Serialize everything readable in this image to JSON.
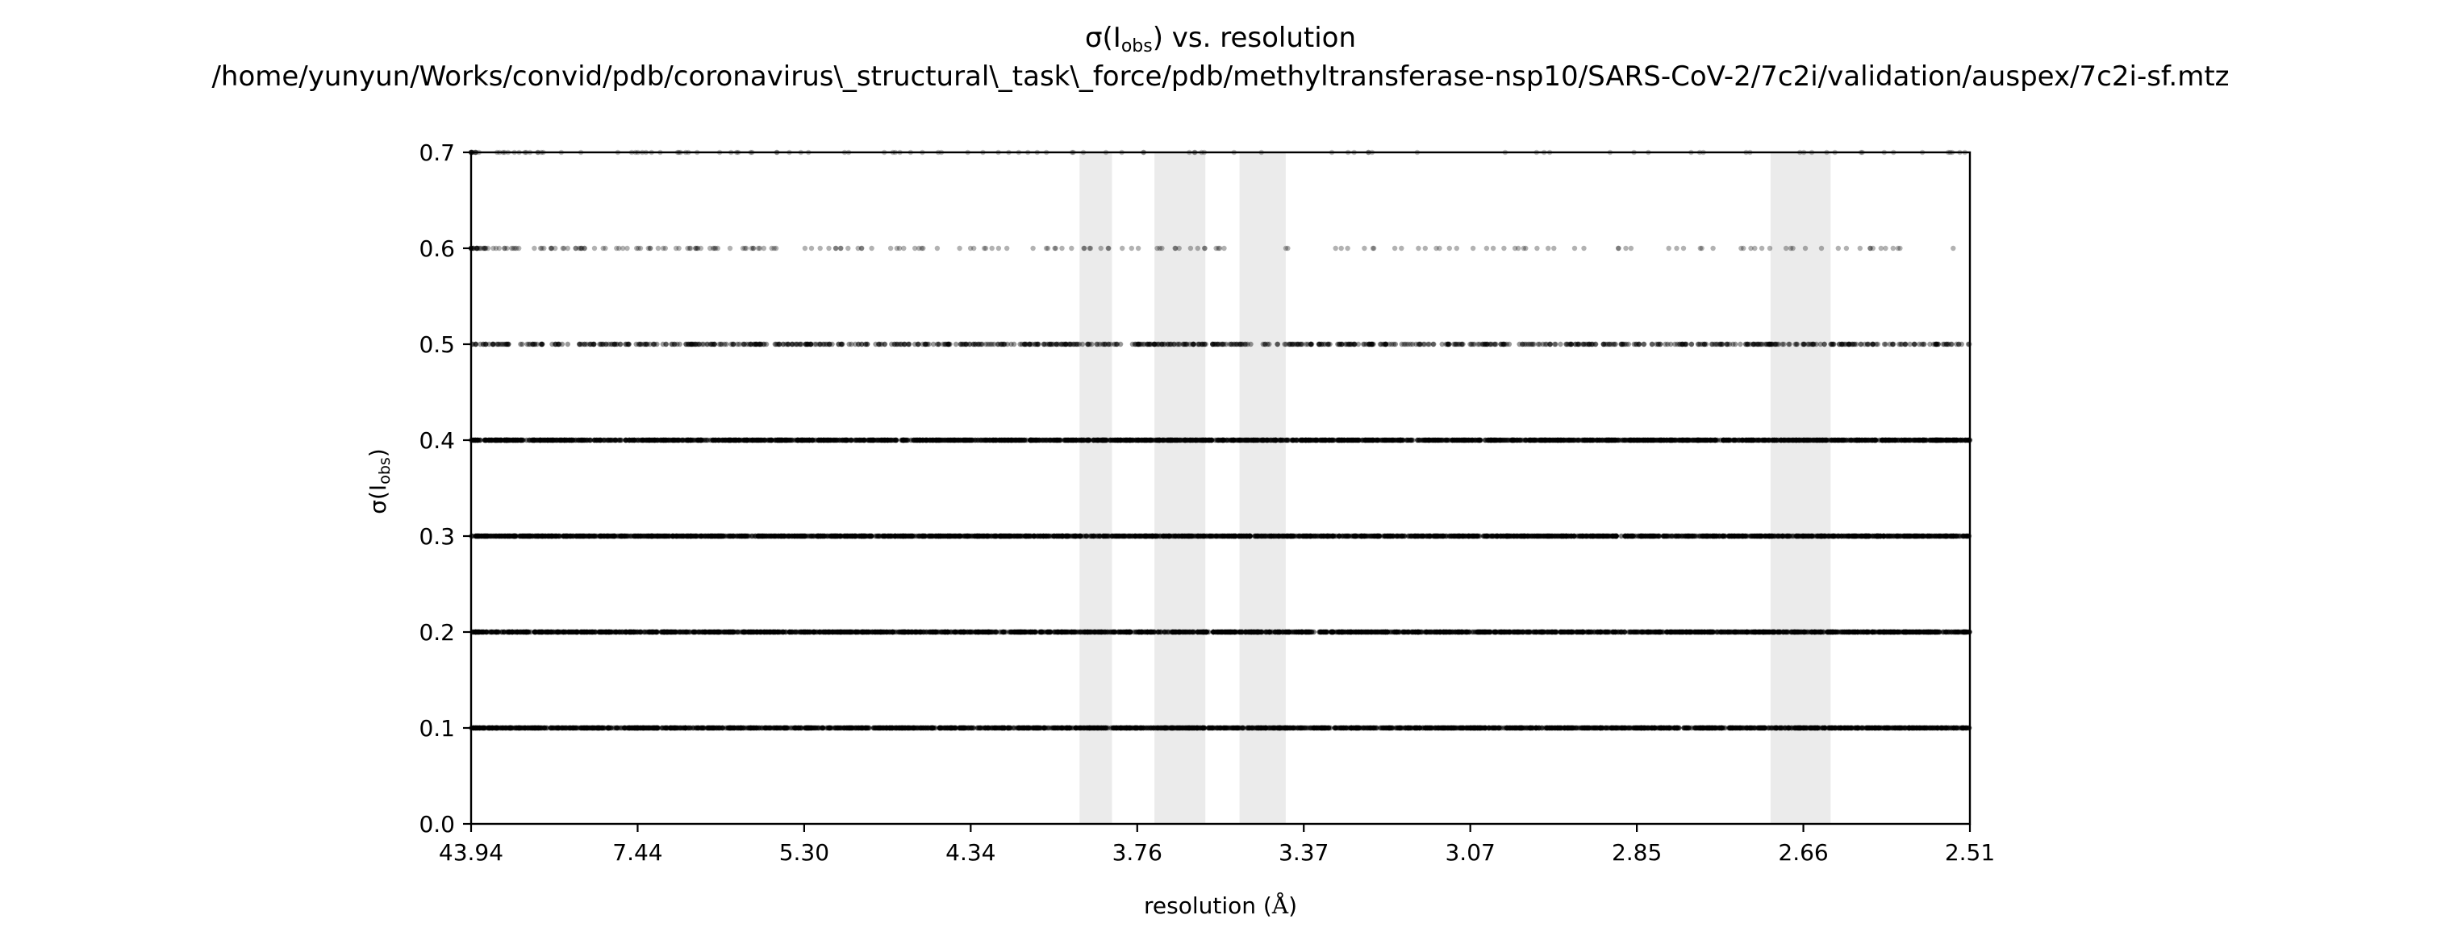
{
  "chart_data": {
    "type": "scatter",
    "title_prefix": "σ(I",
    "title_sub": "obs",
    "title_suffix": ") vs. resolution",
    "subtitle": "/home/yunyun/Works/convid/pdb/coronavirus\\_structural\\_task\\_force/pdb/methyltransferase-nsp10/SARS-CoV-2/7c2i/validation/auspex/7c2i-sf.mtz",
    "xlabel_prefix": "resolution (",
    "xlabel_unit": "Å",
    "xlabel_suffix": ")",
    "ylabel_prefix": "σ(I",
    "ylabel_sub": "obs",
    "ylabel_suffix": ")",
    "x_tick_labels": [
      "43.94",
      "7.44",
      "5.30",
      "4.34",
      "3.76",
      "3.37",
      "3.07",
      "2.85",
      "2.66",
      "2.51"
    ],
    "x_scale": "1/d^2",
    "xlim": [
      43.94,
      2.51
    ],
    "y_ticks": [
      "0.0",
      "0.1",
      "0.2",
      "0.3",
      "0.4",
      "0.5",
      "0.6",
      "0.7"
    ],
    "ylim": [
      0.0,
      0.7
    ],
    "ice_ring_bands_A": [
      [
        3.93,
        3.83
      ],
      [
        3.71,
        3.58
      ],
      [
        3.5,
        3.4
      ],
      [
        2.695,
        2.635
      ]
    ],
    "series": [
      {
        "y": 0.1,
        "density": "dense",
        "x_range": [
          43.94,
          2.51
        ]
      },
      {
        "y": 0.2,
        "density": "dense",
        "x_range": [
          43.94,
          2.51
        ]
      },
      {
        "y": 0.3,
        "density": "dense",
        "x_range": [
          43.94,
          2.51
        ]
      },
      {
        "y": 0.4,
        "density": "dense",
        "x_range": [
          43.94,
          2.51
        ]
      },
      {
        "y": 0.5,
        "density": "medium",
        "x_range": [
          43.94,
          2.51
        ]
      },
      {
        "y": 0.6,
        "density": "sparse",
        "x_range": [
          43.94,
          2.51
        ]
      },
      {
        "y": 0.7,
        "density": "very sparse",
        "x_range": [
          43.94,
          2.51
        ]
      }
    ],
    "band_color": "#ebebeb",
    "point_color": "#000000",
    "grid": false
  }
}
